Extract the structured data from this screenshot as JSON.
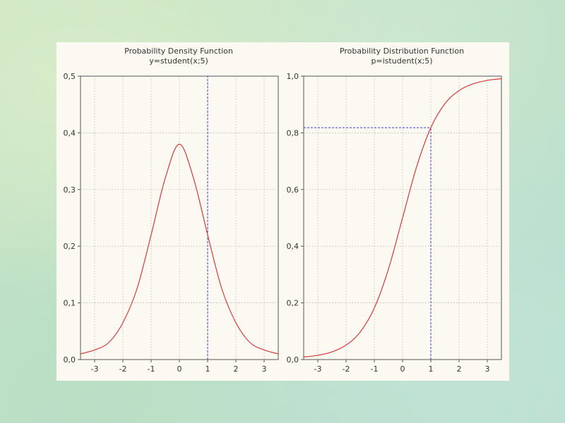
{
  "chart_data": [
    {
      "type": "line",
      "title": "Probability Density Function",
      "subtitle": "y=student(x;5)",
      "xlim": [
        -3.5,
        3.5
      ],
      "ylim": [
        0,
        0.5
      ],
      "x_ticks": [
        -3,
        -2,
        -1,
        0,
        1,
        2,
        3
      ],
      "x_tick_labels": [
        "-3",
        "-2",
        "-1",
        "0",
        "1",
        "2",
        "3"
      ],
      "y_ticks": [
        0,
        0.1,
        0.2,
        0.3,
        0.4,
        0.5
      ],
      "y_tick_labels": [
        "0,0",
        "0,1",
        "0,2",
        "0,3",
        "0,4",
        "0,5"
      ],
      "grid": true,
      "series": [
        {
          "color": "#d23a3a",
          "x": [
            -3.5,
            -3.0,
            -2.5,
            -2.0,
            -1.5,
            -1.0,
            -0.5,
            0.0,
            0.5,
            1.0,
            1.5,
            2.0,
            2.5,
            3.0,
            3.5
          ],
          "y": [
            0.01,
            0.017,
            0.03,
            0.065,
            0.125,
            0.22,
            0.32,
            0.38,
            0.32,
            0.22,
            0.125,
            0.065,
            0.03,
            0.017,
            0.01
          ]
        }
      ],
      "reference_lines": [
        {
          "orientation": "vertical",
          "x": 1,
          "color": "#3a3ad0"
        }
      ]
    },
    {
      "type": "line",
      "title": "Probability Distribution Function",
      "subtitle": "p=istudent(x;5)",
      "xlim": [
        -3.5,
        3.5
      ],
      "ylim": [
        0,
        1.0
      ],
      "x_ticks": [
        -3,
        -2,
        -1,
        0,
        1,
        2,
        3
      ],
      "x_tick_labels": [
        "-3",
        "-2",
        "-1",
        "0",
        "1",
        "2",
        "3"
      ],
      "y_ticks": [
        0,
        0.2,
        0.4,
        0.6,
        0.8,
        1.0
      ],
      "y_tick_labels": [
        "0,0",
        "0,2",
        "0,4",
        "0,6",
        "0,8",
        "1,0"
      ],
      "grid": true,
      "series": [
        {
          "color": "#d23a3a",
          "x": [
            -3.5,
            -3.0,
            -2.5,
            -2.0,
            -1.5,
            -1.0,
            -0.5,
            0.0,
            0.5,
            1.0,
            1.5,
            2.0,
            2.5,
            3.0,
            3.5
          ],
          "y": [
            0.009,
            0.015,
            0.027,
            0.051,
            0.097,
            0.182,
            0.319,
            0.5,
            0.681,
            0.818,
            0.903,
            0.949,
            0.973,
            0.985,
            0.991
          ]
        }
      ],
      "reference_lines": [
        {
          "orientation": "vertical",
          "x": 1,
          "y_from": 0,
          "y_to": 0.818,
          "color": "#3a3ad0"
        },
        {
          "orientation": "horizontal",
          "y": 0.818,
          "x_from": -3.5,
          "x_to": 1,
          "color": "#3a3ad0"
        }
      ]
    }
  ]
}
